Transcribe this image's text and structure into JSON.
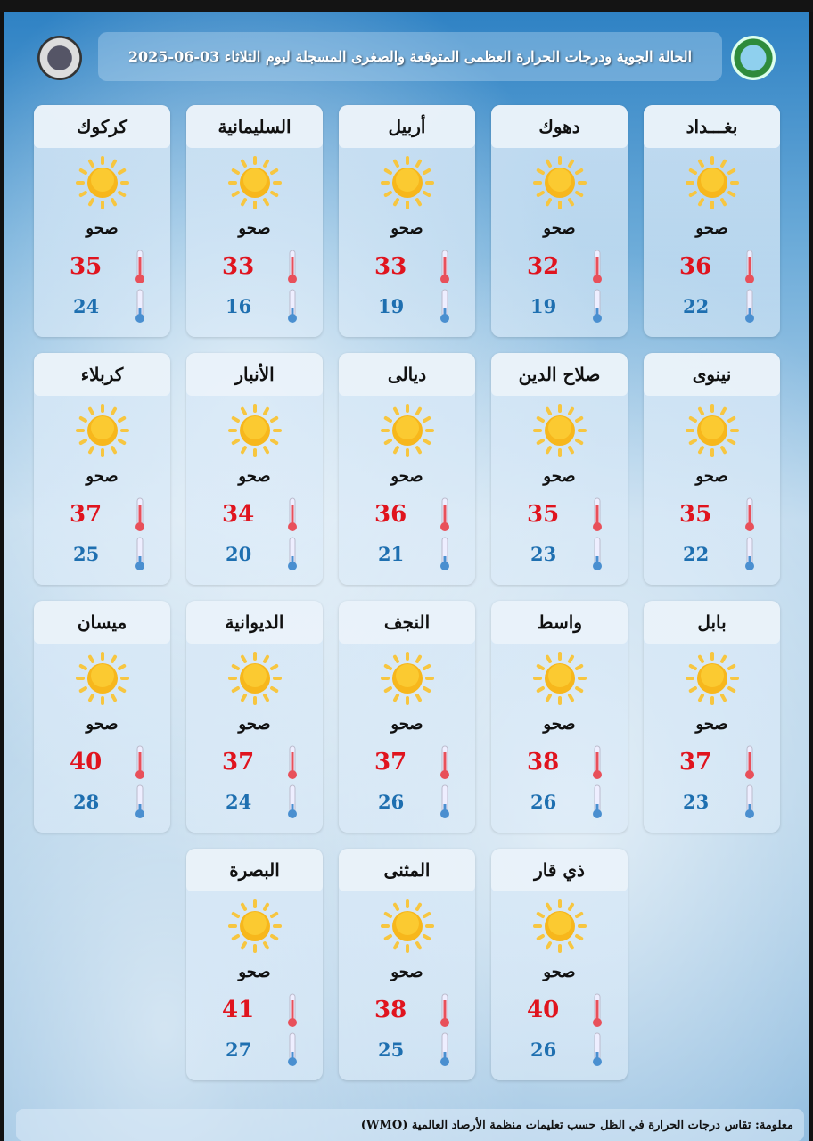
{
  "header": {
    "title": "الحالة الجوية ودرجات الحرارة العظمى المتوقعة والصغرى المسجلة ليوم الثلاثاء 03-06-2025"
  },
  "colors": {
    "max": "#e0141e",
    "min": "#1e6fb0",
    "sun": "#f7b71c"
  },
  "condition_icon": "sun-icon",
  "cities": [
    {
      "name": "بغـــداد",
      "condition": "صحو",
      "max": "36",
      "min": "22"
    },
    {
      "name": "دهوك",
      "condition": "صحو",
      "max": "32",
      "min": "19"
    },
    {
      "name": "أربيل",
      "condition": "صحو",
      "max": "33",
      "min": "19"
    },
    {
      "name": "السليمانية",
      "condition": "صحو",
      "max": "33",
      "min": "16"
    },
    {
      "name": "كركوك",
      "condition": "صحو",
      "max": "35",
      "min": "24"
    },
    {
      "name": "نينوى",
      "condition": "صحو",
      "max": "35",
      "min": "22"
    },
    {
      "name": "صلاح الدين",
      "condition": "صحو",
      "max": "35",
      "min": "23"
    },
    {
      "name": "ديالى",
      "condition": "صحو",
      "max": "36",
      "min": "21"
    },
    {
      "name": "الأنبار",
      "condition": "صحو",
      "max": "34",
      "min": "20"
    },
    {
      "name": "كربلاء",
      "condition": "صحو",
      "max": "37",
      "min": "25"
    },
    {
      "name": "بابل",
      "condition": "صحو",
      "max": "37",
      "min": "23"
    },
    {
      "name": "واسط",
      "condition": "صحو",
      "max": "38",
      "min": "26"
    },
    {
      "name": "النجف",
      "condition": "صحو",
      "max": "37",
      "min": "26"
    },
    {
      "name": "الديوانية",
      "condition": "صحو",
      "max": "37",
      "min": "24"
    },
    {
      "name": "ميسان",
      "condition": "صحو",
      "max": "40",
      "min": "28"
    },
    {
      "name": "ذي قار",
      "condition": "صحو",
      "max": "40",
      "min": "26"
    },
    {
      "name": "المثنى",
      "condition": "صحو",
      "max": "38",
      "min": "25"
    },
    {
      "name": "البصرة",
      "condition": "صحو",
      "max": "41",
      "min": "27"
    }
  ],
  "footer": {
    "note": "معلومة: تقاس درجات الحرارة في الظل حسب تعليمات منظمة الأرصاد العالمية (WMO)"
  }
}
